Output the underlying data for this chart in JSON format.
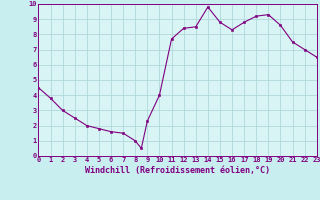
{
  "x": [
    0,
    1,
    2,
    3,
    4,
    5,
    6,
    7,
    8,
    8.5,
    9,
    10,
    11,
    12,
    13,
    14,
    15,
    16,
    17,
    18,
    19,
    20,
    21,
    22,
    23
  ],
  "y": [
    4.5,
    3.8,
    3.0,
    2.5,
    2.0,
    1.8,
    1.6,
    1.5,
    1.0,
    0.5,
    2.3,
    4.0,
    7.7,
    8.4,
    8.5,
    9.8,
    8.8,
    8.3,
    8.8,
    9.2,
    9.3,
    8.6,
    7.5,
    7.0,
    6.5
  ],
  "line_color": "#800080",
  "marker_color": "#800080",
  "bg_color": "#c8eef0",
  "plot_bg_color": "#d8f4f4",
  "grid_color": "#b0d8dc",
  "xlabel": "Windchill (Refroidissement éolien,°C)",
  "xlabel_color": "#800080",
  "xlim": [
    0,
    23
  ],
  "ylim": [
    0,
    10
  ],
  "xticks": [
    0,
    1,
    2,
    3,
    4,
    5,
    6,
    7,
    8,
    9,
    10,
    11,
    12,
    13,
    14,
    15,
    16,
    17,
    18,
    19,
    20,
    21,
    22,
    23
  ],
  "yticks": [
    0,
    1,
    2,
    3,
    4,
    5,
    6,
    7,
    8,
    9,
    10
  ],
  "tick_fontsize": 5.0,
  "xlabel_fontsize": 6.0
}
